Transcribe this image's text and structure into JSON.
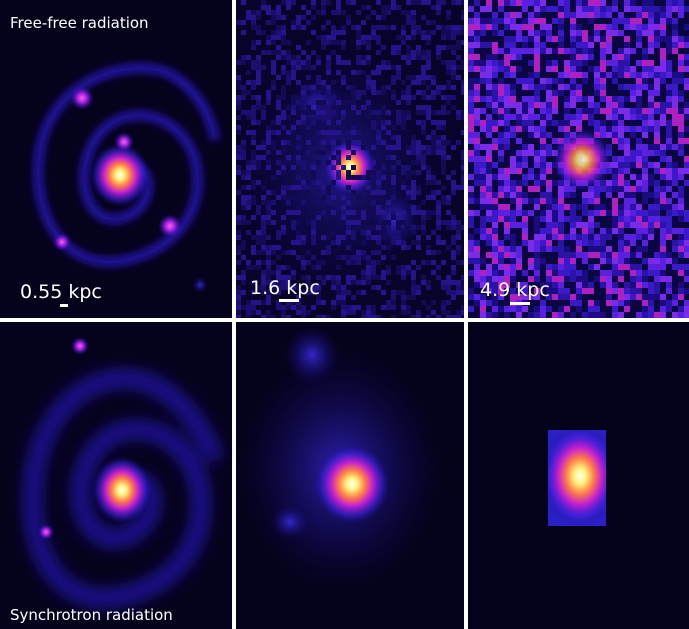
{
  "labels": {
    "top": "Free-free radiation",
    "bottom": "Synchrotron radiation"
  },
  "scale_bars": [
    "0.55 kpc",
    "1.6 kpc",
    "4.9 kpc"
  ]
}
